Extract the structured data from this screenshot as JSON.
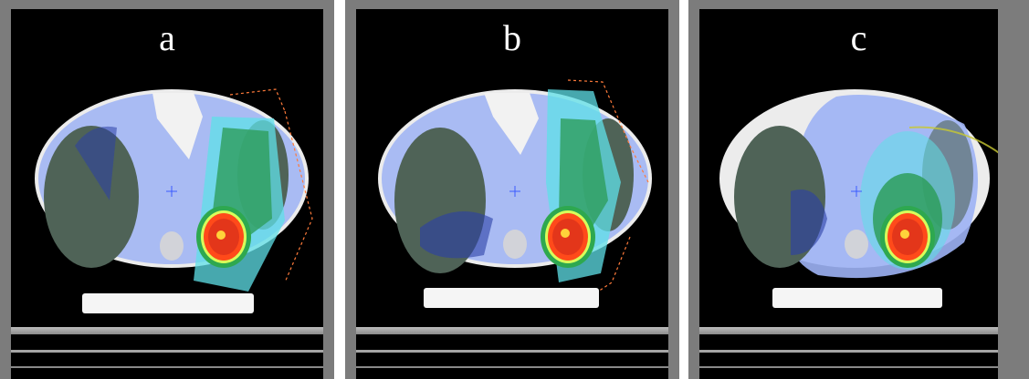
{
  "figure": {
    "panels": [
      {
        "label": "a"
      },
      {
        "label": "b"
      },
      {
        "label": "c"
      }
    ]
  },
  "colors": {
    "background": "#000000",
    "frame": "#7c7c7c",
    "lung": "#4d5f56",
    "body_low_dose": "#8fa8f0",
    "body_mid_dose": "#5fe0e8",
    "high_dose": "#ff4a1a",
    "target_core": "#ffd23a"
  }
}
